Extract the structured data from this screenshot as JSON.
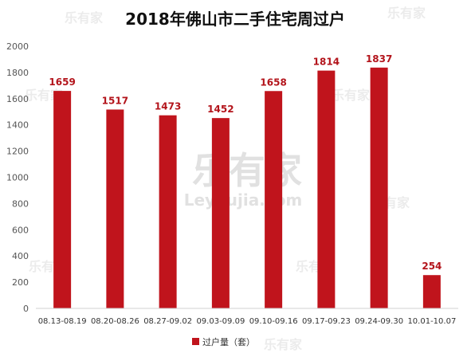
{
  "chart_data": {
    "type": "bar",
    "title": "2018年佛山市二手住宅周过户",
    "categories": [
      "08.13-08.19",
      "08.20-08.26",
      "08.27-09.02",
      "09.03-09.09",
      "09.10-09.16",
      "09.17-09.23",
      "09.24-09.30",
      "10.01-10.07"
    ],
    "series": [
      {
        "name": "过户量（套）",
        "values": [
          1659,
          1517,
          1473,
          1452,
          1658,
          1814,
          1837,
          254
        ]
      }
    ],
    "data_labels": [
      "1659",
      "1517",
      "1473",
      "1452",
      "1658",
      "1814",
      "1837",
      "254"
    ],
    "yticks": [
      "0",
      "200",
      "400",
      "600",
      "800",
      "1000",
      "1200",
      "1400",
      "1600",
      "1800",
      "2000"
    ],
    "ylim": [
      0,
      2000
    ],
    "xlabel": "",
    "ylabel": "",
    "grid": false,
    "legend_position": "bottom",
    "bar_color": "#c0141c"
  },
  "watermark": {
    "brand": "乐有家",
    "domain": "Leyoujia.com"
  }
}
